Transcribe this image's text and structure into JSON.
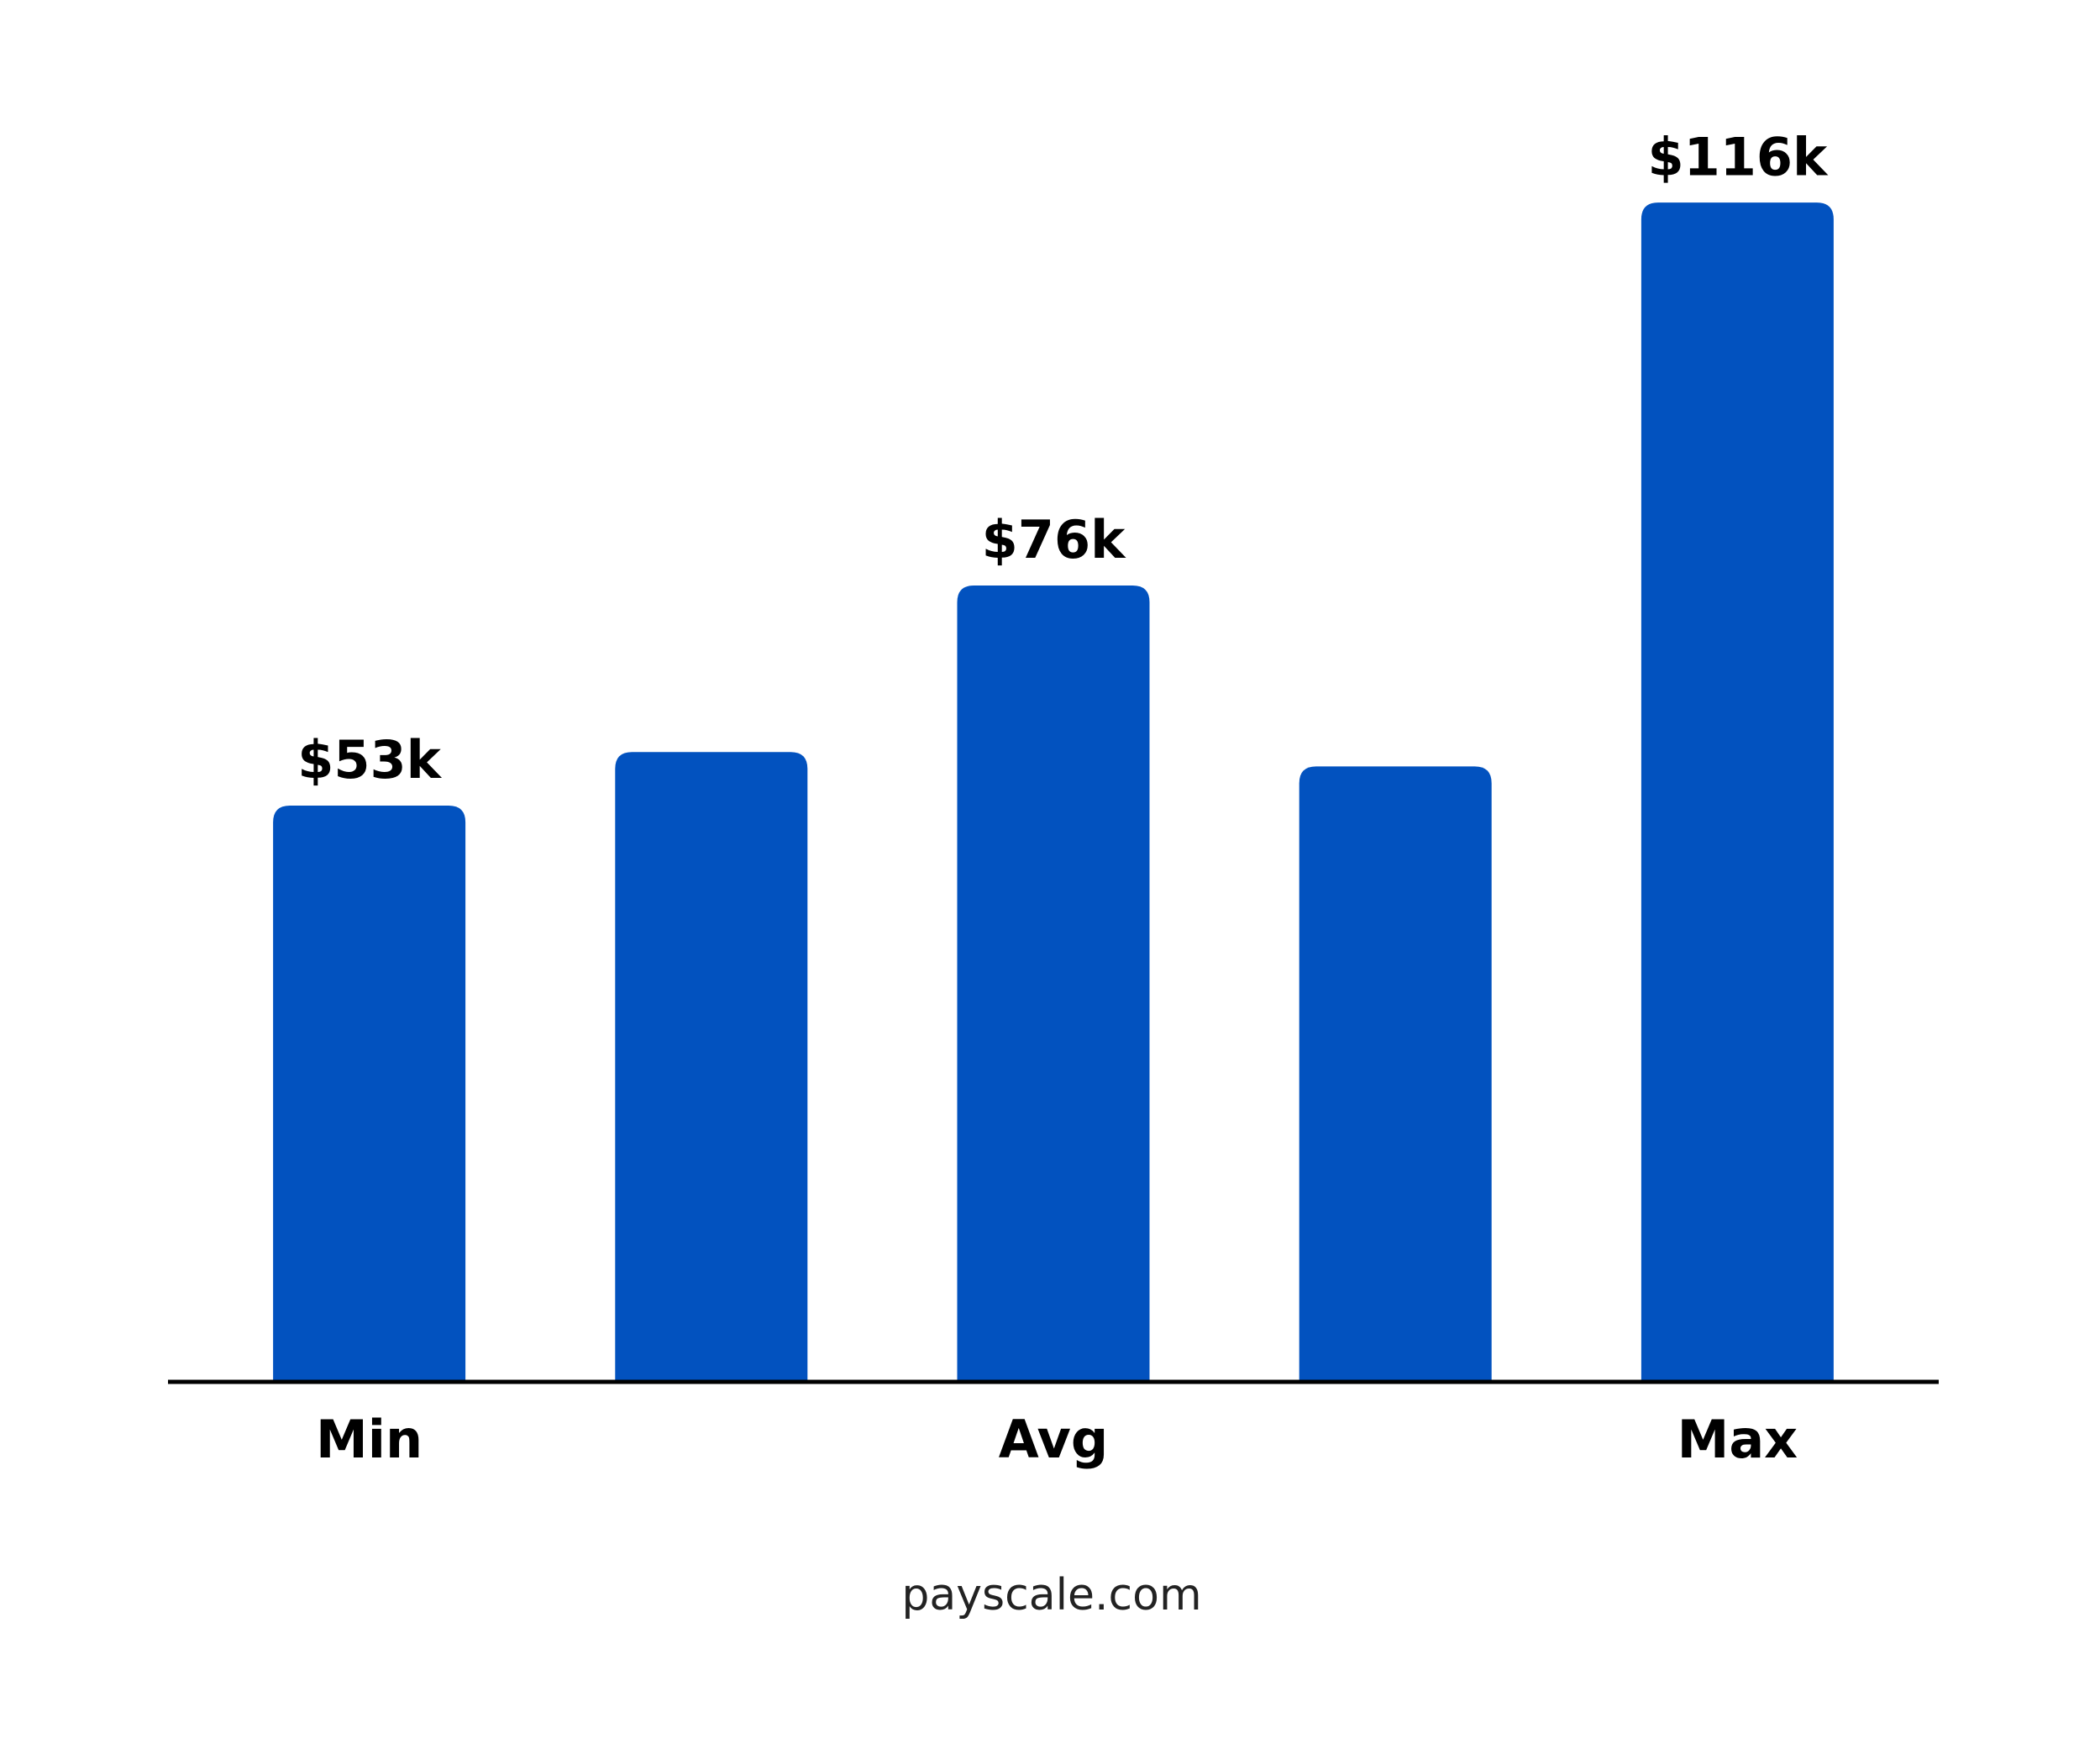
{
  "chart_data": {
    "type": "bar",
    "categories": [
      "Min",
      null,
      "Avg",
      null,
      "Max"
    ],
    "values": [
      53000,
      58600,
      76000,
      57100,
      116000
    ],
    "value_labels": [
      "$53k",
      null,
      "$76k",
      null,
      "$116k"
    ],
    "color": "#0252bf",
    "ylim": [
      -7200,
      124000
    ],
    "source": "payscale.com"
  }
}
